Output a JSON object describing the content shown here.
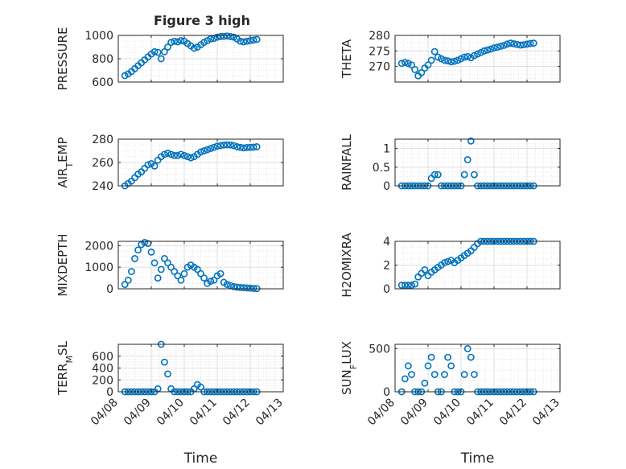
{
  "title": "Figure 3 high",
  "colors": {
    "marker": "#0072BD",
    "grid": "#d9d9d9",
    "axis": "#262626",
    "background": "#ffffff"
  },
  "chart_data": [
    {
      "type": "scatter",
      "ylabel": "PRESSURE",
      "xlabel": "",
      "xlim": [
        "04/08",
        "04/13"
      ],
      "ylim": [
        600,
        1000
      ],
      "yticks": [
        600,
        800,
        1000
      ],
      "xticklabels_visible": false,
      "grid": true,
      "x": [
        0.2,
        0.3,
        0.4,
        0.5,
        0.6,
        0.7,
        0.8,
        0.9,
        1.0,
        1.1,
        1.2,
        1.3,
        1.4,
        1.5,
        1.6,
        1.7,
        1.8,
        1.9,
        2.0,
        2.1,
        2.2,
        2.3,
        2.4,
        2.5,
        2.6,
        2.7,
        2.8,
        2.9,
        3.0,
        3.1,
        3.2,
        3.3,
        3.4,
        3.5,
        3.6,
        3.7,
        3.8,
        3.9,
        4.0,
        4.1,
        4.2
      ],
      "y": [
        655,
        670,
        690,
        715,
        740,
        765,
        790,
        815,
        840,
        860,
        855,
        800,
        860,
        900,
        940,
        950,
        945,
        955,
        950,
        930,
        910,
        890,
        900,
        920,
        940,
        955,
        970,
        975,
        985,
        990,
        992,
        995,
        990,
        985,
        970,
        950,
        945,
        950,
        955,
        960,
        965
      ]
    },
    {
      "type": "scatter",
      "ylabel": "THETA",
      "xlabel": "",
      "xlim": [
        "04/08",
        "04/13"
      ],
      "ylim": [
        265,
        280
      ],
      "yticks": [
        270,
        275,
        280
      ],
      "xticklabels_visible": false,
      "grid": true,
      "x": [
        0.2,
        0.3,
        0.4,
        0.5,
        0.6,
        0.7,
        0.8,
        0.9,
        1.0,
        1.1,
        1.2,
        1.3,
        1.4,
        1.5,
        1.6,
        1.7,
        1.8,
        1.9,
        2.0,
        2.1,
        2.2,
        2.3,
        2.4,
        2.5,
        2.6,
        2.7,
        2.8,
        2.9,
        3.0,
        3.1,
        3.2,
        3.3,
        3.4,
        3.5,
        3.6,
        3.7,
        3.8,
        3.9,
        4.0,
        4.1,
        4.2
      ],
      "y": [
        271,
        271.3,
        271,
        270.5,
        269,
        267,
        268,
        269.5,
        270.5,
        272,
        274.8,
        273,
        272.5,
        272,
        271.8,
        271.5,
        271.7,
        272,
        272.5,
        273,
        273.2,
        272.8,
        273.5,
        274,
        274.5,
        275,
        275.3,
        275.6,
        276,
        276.2,
        276.5,
        276.8,
        277.2,
        277.5,
        277.3,
        277.1,
        276.9,
        277,
        277.2,
        277.4,
        277.5
      ]
    },
    {
      "type": "scatter",
      "ylabel": "AIR_TEMP",
      "xlabel": "",
      "xlim": [
        "04/08",
        "04/13"
      ],
      "ylim": [
        240,
        280
      ],
      "yticks": [
        240,
        260,
        280
      ],
      "xticklabels_visible": false,
      "grid": true,
      "x": [
        0.2,
        0.3,
        0.4,
        0.5,
        0.6,
        0.7,
        0.8,
        0.9,
        1.0,
        1.1,
        1.2,
        1.3,
        1.4,
        1.5,
        1.6,
        1.7,
        1.8,
        1.9,
        2.0,
        2.1,
        2.2,
        2.3,
        2.4,
        2.5,
        2.6,
        2.7,
        2.8,
        2.9,
        3.0,
        3.1,
        3.2,
        3.3,
        3.4,
        3.5,
        3.6,
        3.7,
        3.8,
        3.9,
        4.0,
        4.1,
        4.2
      ],
      "y": [
        240,
        242,
        244,
        247,
        250,
        252,
        255,
        258,
        259,
        257,
        262,
        265,
        267,
        268,
        267,
        266,
        266,
        267,
        266,
        265,
        264,
        265,
        267,
        269,
        270,
        271,
        272,
        273,
        274,
        274.5,
        275,
        275.2,
        275,
        274.5,
        273.5,
        273,
        272.5,
        272.8,
        273,
        273.2,
        273.5
      ]
    },
    {
      "type": "scatter",
      "ylabel": "RAINFALL",
      "xlabel": "",
      "xlim": [
        "04/08",
        "04/13"
      ],
      "ylim": [
        0,
        1.25
      ],
      "yticks": [
        0,
        0.5,
        1
      ],
      "xticklabels_visible": false,
      "grid": true,
      "x": [
        0.2,
        0.3,
        0.4,
        0.5,
        0.6,
        0.7,
        0.8,
        0.9,
        1.0,
        1.1,
        1.2,
        1.3,
        1.4,
        1.5,
        1.6,
        1.7,
        1.8,
        1.9,
        2.0,
        2.1,
        2.2,
        2.3,
        2.4,
        2.5,
        2.6,
        2.7,
        2.8,
        2.9,
        3.0,
        3.1,
        3.2,
        3.3,
        3.4,
        3.5,
        3.6,
        3.7,
        3.8,
        3.9,
        4.0,
        4.1,
        4.2
      ],
      "y": [
        0,
        0,
        0,
        0,
        0,
        0,
        0,
        0,
        0,
        0.2,
        0.3,
        0.3,
        0,
        0,
        0,
        0,
        0,
        0,
        0,
        0.3,
        0.7,
        1.2,
        0.3,
        0,
        0,
        0,
        0,
        0,
        0,
        0,
        0,
        0,
        0,
        0,
        0,
        0,
        0,
        0,
        0,
        0,
        0
      ]
    },
    {
      "type": "scatter",
      "ylabel": "MIXDEPTH",
      "xlabel": "",
      "xlim": [
        "04/08",
        "04/13"
      ],
      "ylim": [
        0,
        2200
      ],
      "yticks": [
        0,
        1000,
        2000
      ],
      "xticklabels_visible": false,
      "grid": true,
      "x": [
        0.2,
        0.3,
        0.4,
        0.5,
        0.6,
        0.7,
        0.8,
        0.9,
        1.0,
        1.1,
        1.2,
        1.3,
        1.4,
        1.5,
        1.6,
        1.7,
        1.8,
        1.9,
        2.0,
        2.1,
        2.2,
        2.3,
        2.4,
        2.5,
        2.6,
        2.7,
        2.8,
        2.9,
        3.0,
        3.1,
        3.2,
        3.3,
        3.4,
        3.5,
        3.6,
        3.7,
        3.8,
        3.9,
        4.0,
        4.1,
        4.2
      ],
      "y": [
        200,
        400,
        800,
        1400,
        1800,
        2050,
        2150,
        2100,
        1700,
        1200,
        500,
        900,
        1400,
        1200,
        1000,
        800,
        600,
        400,
        700,
        1000,
        1100,
        1000,
        900,
        700,
        500,
        250,
        350,
        400,
        600,
        700,
        300,
        200,
        150,
        100,
        80,
        60,
        50,
        40,
        30,
        20,
        10
      ]
    },
    {
      "type": "scatter",
      "ylabel": "H2OMIXRA",
      "xlabel": "",
      "xlim": [
        "04/08",
        "04/13"
      ],
      "ylim": [
        0,
        4
      ],
      "yticks": [
        0,
        2,
        4
      ],
      "xticklabels_visible": false,
      "grid": true,
      "x": [
        0.2,
        0.3,
        0.4,
        0.5,
        0.6,
        0.7,
        0.8,
        0.9,
        1.0,
        1.1,
        1.2,
        1.3,
        1.4,
        1.5,
        1.6,
        1.7,
        1.8,
        1.9,
        2.0,
        2.1,
        2.2,
        2.3,
        2.4,
        2.5,
        2.6,
        2.7,
        2.8,
        2.9,
        3.0,
        3.1,
        3.2,
        3.3,
        3.4,
        3.5,
        3.6,
        3.7,
        3.8,
        3.9,
        4.0,
        4.1,
        4.2
      ],
      "y": [
        0.3,
        0.3,
        0.3,
        0.3,
        0.4,
        1.0,
        1.3,
        1.6,
        1.1,
        1.4,
        1.6,
        1.8,
        2.0,
        2.2,
        2.3,
        2.4,
        2.2,
        2.4,
        2.6,
        2.8,
        3.0,
        3.2,
        3.5,
        3.8,
        4.0,
        4.0,
        4.0,
        4.0,
        4.0,
        4.0,
        4.0,
        4.0,
        4.0,
        4.0,
        4.0,
        4.0,
        4.0,
        4.0,
        4.0,
        4.0,
        4.0
      ]
    },
    {
      "type": "scatter",
      "ylabel": "TERR_MSL",
      "xlabel": "Time",
      "xlim": [
        "04/08",
        "04/13"
      ],
      "ylim": [
        0,
        800
      ],
      "yticks": [
        0,
        200,
        400,
        600
      ],
      "xticks": [
        "04/08",
        "04/09",
        "04/10",
        "04/11",
        "04/12",
        "04/13"
      ],
      "xticklabels_visible": true,
      "grid": true,
      "x": [
        0.2,
        0.3,
        0.4,
        0.5,
        0.6,
        0.7,
        0.8,
        0.9,
        1.0,
        1.1,
        1.2,
        1.3,
        1.4,
        1.5,
        1.6,
        1.7,
        1.8,
        1.9,
        2.0,
        2.1,
        2.2,
        2.3,
        2.4,
        2.5,
        2.6,
        2.7,
        2.8,
        2.9,
        3.0,
        3.1,
        3.2,
        3.3,
        3.4,
        3.5,
        3.6,
        3.7,
        3.8,
        3.9,
        4.0,
        4.1,
        4.2
      ],
      "y": [
        0,
        0,
        0,
        0,
        0,
        0,
        0,
        0,
        0,
        0,
        50,
        800,
        500,
        300,
        50,
        0,
        0,
        0,
        0,
        0,
        0,
        50,
        120,
        80,
        0,
        0,
        0,
        0,
        0,
        0,
        0,
        0,
        0,
        0,
        0,
        0,
        0,
        0,
        0,
        0,
        0
      ]
    },
    {
      "type": "scatter",
      "ylabel": "SUN_FLUX",
      "xlabel": "Time",
      "xlim": [
        "04/08",
        "04/13"
      ],
      "ylim": [
        0,
        550
      ],
      "yticks": [
        0,
        500
      ],
      "xticks": [
        "04/08",
        "04/09",
        "04/10",
        "04/11",
        "04/12",
        "04/13"
      ],
      "xticklabels_visible": true,
      "grid": true,
      "x": [
        0.2,
        0.3,
        0.4,
        0.5,
        0.6,
        0.7,
        0.8,
        0.9,
        1.0,
        1.1,
        1.2,
        1.3,
        1.4,
        1.5,
        1.6,
        1.7,
        1.8,
        1.9,
        2.0,
        2.1,
        2.2,
        2.3,
        2.4,
        2.5,
        2.6,
        2.7,
        2.8,
        2.9,
        3.0,
        3.1,
        3.2,
        3.3,
        3.4,
        3.5,
        3.6,
        3.7,
        3.8,
        3.9,
        4.0,
        4.1,
        4.2
      ],
      "y": [
        0,
        150,
        300,
        200,
        0,
        0,
        0,
        100,
        300,
        400,
        200,
        0,
        0,
        200,
        400,
        300,
        0,
        0,
        0,
        200,
        500,
        400,
        200,
        0,
        0,
        0,
        0,
        0,
        0,
        0,
        0,
        0,
        0,
        0,
        0,
        0,
        0,
        0,
        0,
        0,
        0
      ]
    }
  ]
}
